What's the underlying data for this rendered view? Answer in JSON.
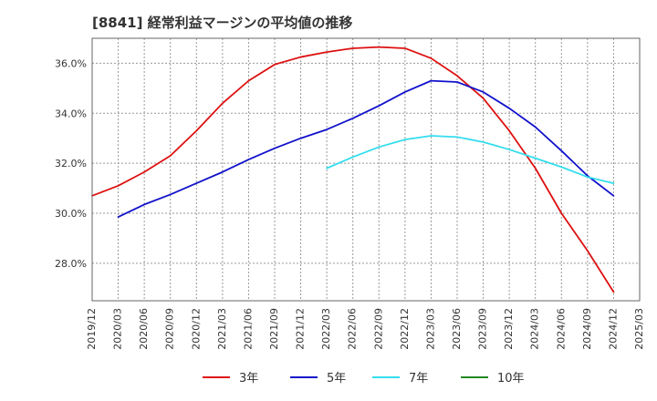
{
  "chart_data": {
    "type": "line",
    "title": "[8841]  経常利益マージンの平均値の推移",
    "xlabel": "",
    "ylabel": "",
    "ylim": [
      26.5,
      37.0
    ],
    "y_ticks": [
      28.0,
      30.0,
      32.0,
      34.0,
      36.0
    ],
    "y_tick_format": "%",
    "x_categories": [
      "2019/12",
      "2020/03",
      "2020/06",
      "2020/09",
      "2020/12",
      "2021/03",
      "2021/06",
      "2021/09",
      "2021/12",
      "2022/03",
      "2022/06",
      "2022/09",
      "2022/12",
      "2023/03",
      "2023/06",
      "2023/09",
      "2023/12",
      "2024/03",
      "2024/06",
      "2024/09",
      "2024/12",
      "2025/03"
    ],
    "grid": true,
    "legend_position": "bottom",
    "series": [
      {
        "name": "3年",
        "color": "#dd1111",
        "values": [
          30.7,
          31.1,
          31.65,
          32.3,
          33.3,
          34.4,
          35.3,
          35.95,
          36.25,
          36.45,
          36.6,
          36.65,
          36.6,
          36.2,
          35.5,
          34.6,
          33.3,
          31.8,
          30.0,
          28.5,
          26.85,
          null
        ]
      },
      {
        "name": "5年",
        "color": "#1111cc",
        "values": [
          null,
          29.85,
          30.35,
          30.75,
          31.2,
          31.65,
          32.15,
          32.6,
          33.0,
          33.35,
          33.8,
          34.3,
          34.85,
          35.3,
          35.25,
          34.85,
          34.2,
          33.45,
          32.5,
          31.5,
          30.7,
          null
        ]
      },
      {
        "name": "7年",
        "color": "#33ddee",
        "values": [
          null,
          null,
          null,
          null,
          null,
          null,
          null,
          null,
          null,
          31.8,
          32.25,
          32.65,
          32.95,
          33.1,
          33.05,
          32.85,
          32.55,
          32.2,
          31.85,
          31.45,
          31.2,
          null
        ]
      },
      {
        "name": "10年",
        "color": "#228822",
        "values": [
          null,
          null,
          null,
          null,
          null,
          null,
          null,
          null,
          null,
          null,
          null,
          null,
          null,
          null,
          null,
          null,
          null,
          null,
          null,
          null,
          null,
          null
        ]
      }
    ]
  }
}
